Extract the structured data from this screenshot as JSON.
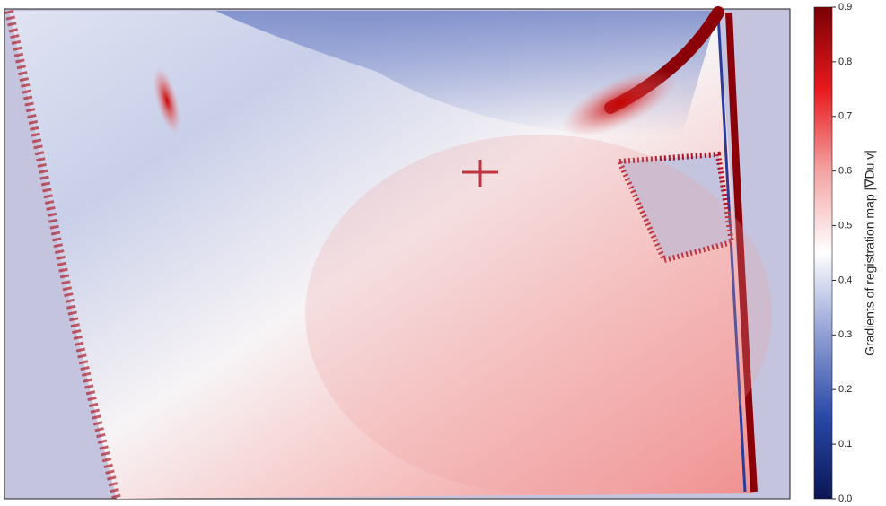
{
  "chart_data": {
    "type": "heatmap",
    "colorbar_label": "Gradients of registration map |∇Du,v|",
    "clim": [
      0,
      0.9
    ],
    "cticks": [
      {
        "value": 0,
        "label": "0.0"
      },
      0.1,
      0.2,
      0.3,
      0.4,
      0.5,
      0.6,
      0.7,
      0.8,
      0.9
    ],
    "colormap": [
      "#0a1655",
      "#2a48a8",
      "#8f9ed4",
      "#ffffff",
      "#f4a3a3",
      "#e8191c",
      "#7a0005"
    ]
  }
}
